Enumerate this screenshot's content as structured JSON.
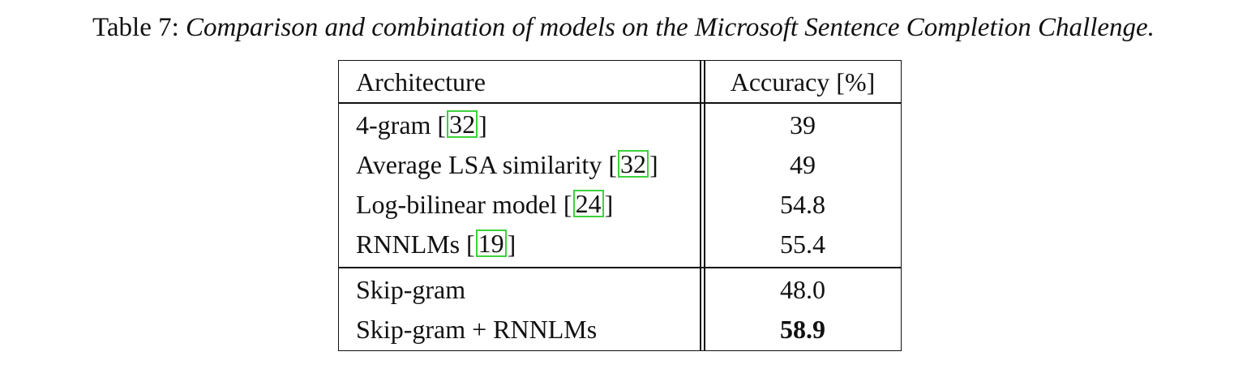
{
  "caption": {
    "label": "Table 7:",
    "text": "Comparison and combination of models on the Microsoft Sentence Completion Challenge."
  },
  "table": {
    "headers": [
      "Architecture",
      "Accuracy [%]"
    ],
    "rows": [
      {
        "name": "4-gram",
        "ref": "32",
        "accuracy": "39",
        "bold": false
      },
      {
        "name": "Average LSA similarity",
        "ref": "32",
        "accuracy": "49",
        "bold": false
      },
      {
        "name": "Log-bilinear model",
        "ref": "24",
        "accuracy": "54.8",
        "bold": false
      },
      {
        "name": "RNNLMs",
        "ref": "19",
        "accuracy": "55.4",
        "bold": false
      },
      {
        "name": "Skip-gram",
        "ref": "",
        "accuracy": "48.0",
        "bold": false
      },
      {
        "name": "Skip-gram + RNNLMs",
        "ref": "",
        "accuracy": "58.9",
        "bold": true
      }
    ]
  },
  "colors": {
    "citation_box": "#3cd33c",
    "text": "#111111"
  }
}
